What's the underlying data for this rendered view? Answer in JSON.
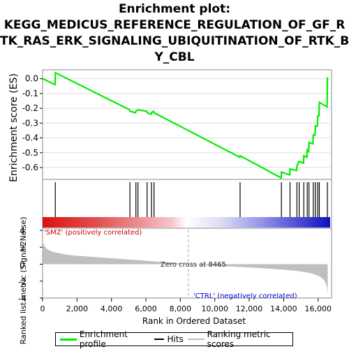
{
  "title_lines": [
    "Enrichment plot:",
    "KEGG_MEDICUS_REFERENCE_REGULATION_OF_GF_R",
    "TK_RAS_ERK_SIGNALING_UBIQUITINATION_OF_RTK_B",
    "Y_CBL"
  ],
  "colors": {
    "enrichment_line": "#00ee00",
    "hits": "#000000",
    "ranking_fill": "#bfbfbf",
    "pos_label": "#cc0000",
    "neg_label": "#0000cc",
    "zero_line": "#aaaaaa"
  },
  "chart_data": [
    {
      "type": "line",
      "panel": "enrichment_score",
      "ylabel": "Enrichment score (ES)",
      "yticks": [
        "0.0",
        "-0.1",
        "-0.2",
        "-0.3",
        "-0.4",
        "-0.5",
        "-0.6"
      ],
      "ylim": [
        -0.68,
        0.06
      ],
      "xlim": [
        0,
        16700
      ],
      "grid": true,
      "series": [
        {
          "name": "Enrichment profile",
          "x": [
            0,
            720,
            740,
            5050,
            5070,
            5400,
            5420,
            5520,
            5540,
            6050,
            6070,
            6300,
            6320,
            6450,
            6470,
            11450,
            11470,
            13850,
            13870,
            14350,
            14370,
            14750,
            14770,
            14880,
            14900,
            15150,
            15170,
            15350,
            15370,
            15450,
            15470,
            15700,
            15720,
            15820,
            15840,
            15960,
            15980,
            16050,
            16070,
            16520,
            16540
          ],
          "y": [
            0.0,
            -0.04,
            0.04,
            -0.21,
            -0.22,
            -0.23,
            -0.22,
            -0.21,
            -0.21,
            -0.22,
            -0.23,
            -0.24,
            -0.23,
            -0.22,
            -0.23,
            -0.53,
            -0.52,
            -0.67,
            -0.63,
            -0.65,
            -0.61,
            -0.62,
            -0.59,
            -0.56,
            -0.56,
            -0.57,
            -0.52,
            -0.53,
            -0.48,
            -0.49,
            -0.43,
            -0.44,
            -0.38,
            -0.38,
            -0.32,
            -0.32,
            -0.25,
            -0.25,
            -0.16,
            -0.19,
            0.01
          ]
        }
      ]
    },
    {
      "type": "hits",
      "panel": "hits",
      "name": "Hits",
      "positions": [
        740,
        5070,
        5420,
        5540,
        6070,
        6320,
        6470,
        11470,
        13870,
        14370,
        14770,
        14900,
        15170,
        15370,
        15470,
        15720,
        15840,
        15980,
        16070,
        16540
      ]
    },
    {
      "type": "area",
      "panel": "ranked_list_metric",
      "ylabel": "Ranked list metric (Signal2Noise)",
      "xlabel": "Rank in Ordered Dataset",
      "name": "Ranking metric scores",
      "xticks": [
        "0",
        "2,000",
        "4,000",
        "6,000",
        "8,000",
        "10,000",
        "12,000",
        "14,000",
        "16,000"
      ],
      "xtick_values": [
        0,
        2000,
        4000,
        6000,
        8000,
        10000,
        12000,
        14000,
        16000
      ],
      "yticks": [
        "4",
        "2",
        "0",
        "-2",
        "-4"
      ],
      "ytick_values": [
        4,
        2,
        0,
        -2,
        -4
      ],
      "ylim": [
        -4,
        4
      ],
      "xlim": [
        0,
        16700
      ],
      "x": [
        0,
        30,
        100,
        200,
        400,
        700,
        1000,
        1500,
        2000,
        3000,
        4000,
        5000,
        6000,
        7000,
        8000,
        8465,
        9000,
        10000,
        11000,
        12000,
        13000,
        14000,
        14800,
        15300,
        15700,
        16000,
        16200,
        16350,
        16450,
        16520,
        16560
      ],
      "y": [
        2.9,
        2.5,
        2.2,
        1.9,
        1.6,
        1.4,
        1.3,
        1.1,
        1.0,
        0.85,
        0.7,
        0.55,
        0.4,
        0.25,
        0.12,
        0.0,
        -0.06,
        -0.18,
        -0.28,
        -0.38,
        -0.5,
        -0.65,
        -0.8,
        -0.95,
        -1.15,
        -1.35,
        -1.6,
        -1.9,
        -2.3,
        -2.8,
        -3.6
      ],
      "zero_cross_label": "Zero cross at 8465",
      "zero_cross_value": 8465,
      "pos_label": "'SMZ' (positively correlated)",
      "neg_label": "'CTRL' (negatively correlated)"
    }
  ],
  "legend": {
    "items": [
      {
        "label": "Enrichment profile",
        "color": "#00ee00"
      },
      {
        "label": "Hits",
        "color": "#000000"
      },
      {
        "label": "Ranking metric scores",
        "color": "#bfbfbf"
      }
    ]
  }
}
